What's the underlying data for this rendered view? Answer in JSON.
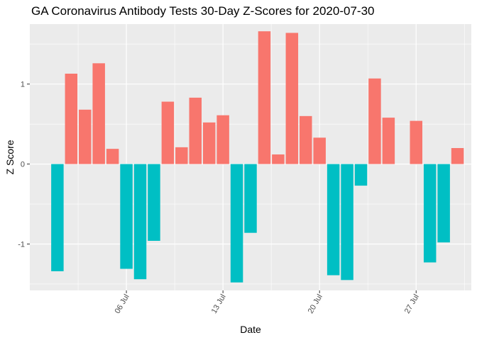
{
  "chart_data": {
    "type": "bar",
    "title": "GA Coronavirus Antibody Tests 30-Day Z-Scores for 2020-07-30",
    "xlabel": "Date",
    "ylabel": "Z Score",
    "x_tick_labels": [
      "06 Jul",
      "13 Jul",
      "20 Jul",
      "27 Jul"
    ],
    "x_tick_dates": [
      "2020-07-06",
      "2020-07-13",
      "2020-07-20",
      "2020-07-27"
    ],
    "y_tick_labels": [
      "-1",
      "0",
      "1"
    ],
    "y_ticks": [
      -1,
      0,
      1
    ],
    "ylim": [
      -1.58,
      1.75
    ],
    "xlim": [
      "2020-06-29",
      "2020-07-31"
    ],
    "grid": true,
    "legend": "none",
    "colors": {
      "positive": "#F8766D",
      "negative": "#00BFC4",
      "panel": "#EBEBEB",
      "grid": "#FFFFFF"
    },
    "dates": [
      "2020-07-01",
      "2020-07-02",
      "2020-07-03",
      "2020-07-04",
      "2020-07-05",
      "2020-07-06",
      "2020-07-07",
      "2020-07-08",
      "2020-07-09",
      "2020-07-10",
      "2020-07-11",
      "2020-07-12",
      "2020-07-13",
      "2020-07-14",
      "2020-07-15",
      "2020-07-16",
      "2020-07-17",
      "2020-07-18",
      "2020-07-19",
      "2020-07-20",
      "2020-07-21",
      "2020-07-22",
      "2020-07-23",
      "2020-07-24",
      "2020-07-25",
      "2020-07-26",
      "2020-07-27",
      "2020-07-28",
      "2020-07-29",
      "2020-07-30"
    ],
    "values": [
      -1.34,
      1.13,
      0.68,
      1.26,
      0.19,
      -1.31,
      -1.44,
      -0.96,
      0.78,
      0.21,
      0.83,
      0.52,
      0.61,
      -1.48,
      -0.86,
      1.66,
      0.12,
      1.64,
      0.6,
      0.33,
      -1.39,
      -1.45,
      -0.27,
      1.07,
      0.58,
      0.0,
      0.54,
      -1.23,
      -0.98,
      0.2
    ]
  }
}
